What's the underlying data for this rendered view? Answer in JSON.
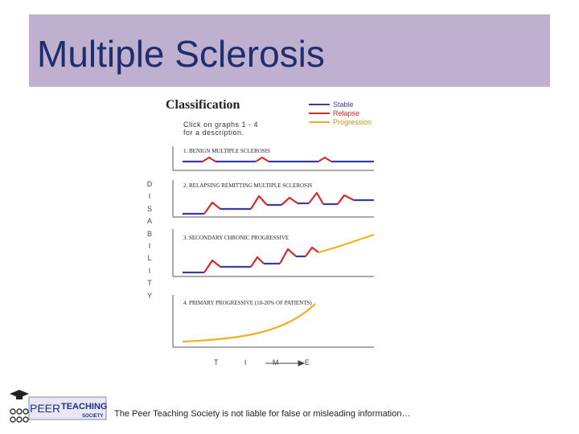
{
  "slide": {
    "title": "Multiple Sclerosis",
    "footer_text": "The Peer Teaching Society is not liable for false or misleading information…"
  },
  "figure": {
    "title": "Classification",
    "note_line1": "Click on graphs 1 - 4",
    "note_line2": "for a description.",
    "legend": [
      {
        "label": "Stable",
        "color": "#3a3aa8"
      },
      {
        "label": "Relapse",
        "color": "#d42a2a"
      },
      {
        "label": "Progression",
        "color": "#f0b020"
      }
    ],
    "y_axis_letters": [
      "D",
      "I",
      "S",
      "A",
      "B",
      "I",
      "L",
      "I",
      "T",
      "Y"
    ],
    "x_axis_label": "T I M E",
    "panels": [
      {
        "label": "1. BENIGN MULTIPLE SCLEROSIS"
      },
      {
        "label": "2. RELAPSING REMITTING MULTIPLE SCLEROSIS"
      },
      {
        "label": "3. SECONDARY CHRONIC PROGRESSIVE"
      },
      {
        "label": "4. PRIMARY PROGRESSIVE  (10-20% OF PATIENTS)"
      }
    ]
  },
  "logo": {
    "text_peer": "PEER",
    "text_teaching": "TEACHING",
    "text_society": "SOCIETY"
  }
}
